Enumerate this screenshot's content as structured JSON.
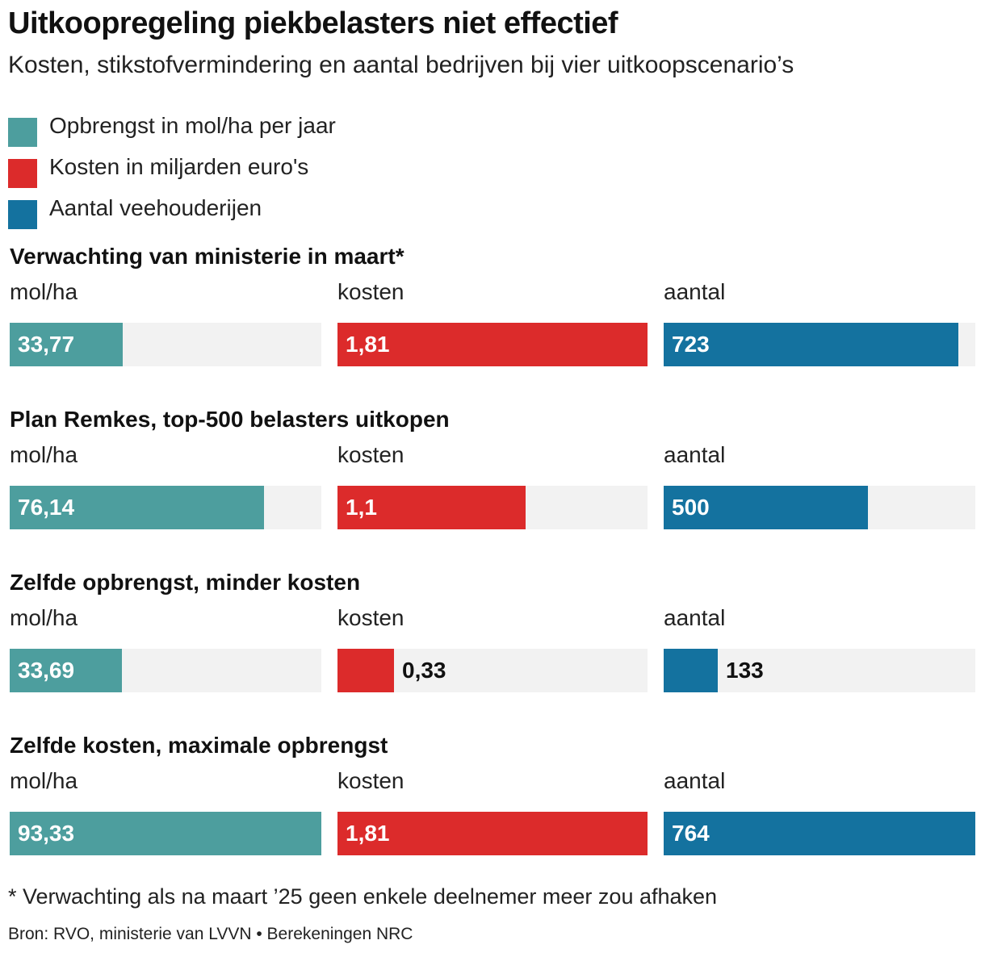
{
  "title": "Uitkoopregeling piekbelasters niet effectief",
  "subtitle": "Kosten, stikstofvermindering en aantal bedrijven bij vier uitkoopscenario’s",
  "legend": [
    {
      "label": "Opbrengst in mol/ha per jaar",
      "color": "#4d9e9e"
    },
    {
      "label": "Kosten in miljarden euro's",
      "color": "#dc2b2b"
    },
    {
      "label": "Aantal veehouderijen",
      "color": "#14729f"
    }
  ],
  "chart_data": {
    "type": "bar",
    "metrics": [
      {
        "label": "mol/ha",
        "color": "#4d9e9e",
        "max": 93.33
      },
      {
        "label": "kosten",
        "color": "#dc2b2b",
        "max": 1.81
      },
      {
        "label": "aantal",
        "color": "#14729f",
        "max": 764
      }
    ],
    "scenarios": [
      {
        "title": "Verwachting van ministerie in maart*",
        "values": [
          33.77,
          1.81,
          723
        ],
        "labels": [
          "33,77",
          "1,81",
          "723"
        ]
      },
      {
        "title": "Plan Remkes, top-500 belasters uitkopen",
        "values": [
          76.14,
          1.1,
          500
        ],
        "labels": [
          "76,14",
          "1,1",
          "500"
        ]
      },
      {
        "title": "Zelfde opbrengst, minder kosten",
        "values": [
          33.69,
          0.33,
          133
        ],
        "labels": [
          "33,69",
          "0,33",
          "133"
        ]
      },
      {
        "title": "Zelfde kosten, maximale opbrengst",
        "values": [
          93.33,
          1.81,
          764
        ],
        "labels": [
          "93,33",
          "1,81",
          "764"
        ]
      }
    ]
  },
  "footnote": "* Verwachting als na maart ’25 geen enkele deelnemer meer zou afhaken",
  "source": "Bron: RVO, ministerie van LVVN  •  Berekeningen NRC"
}
